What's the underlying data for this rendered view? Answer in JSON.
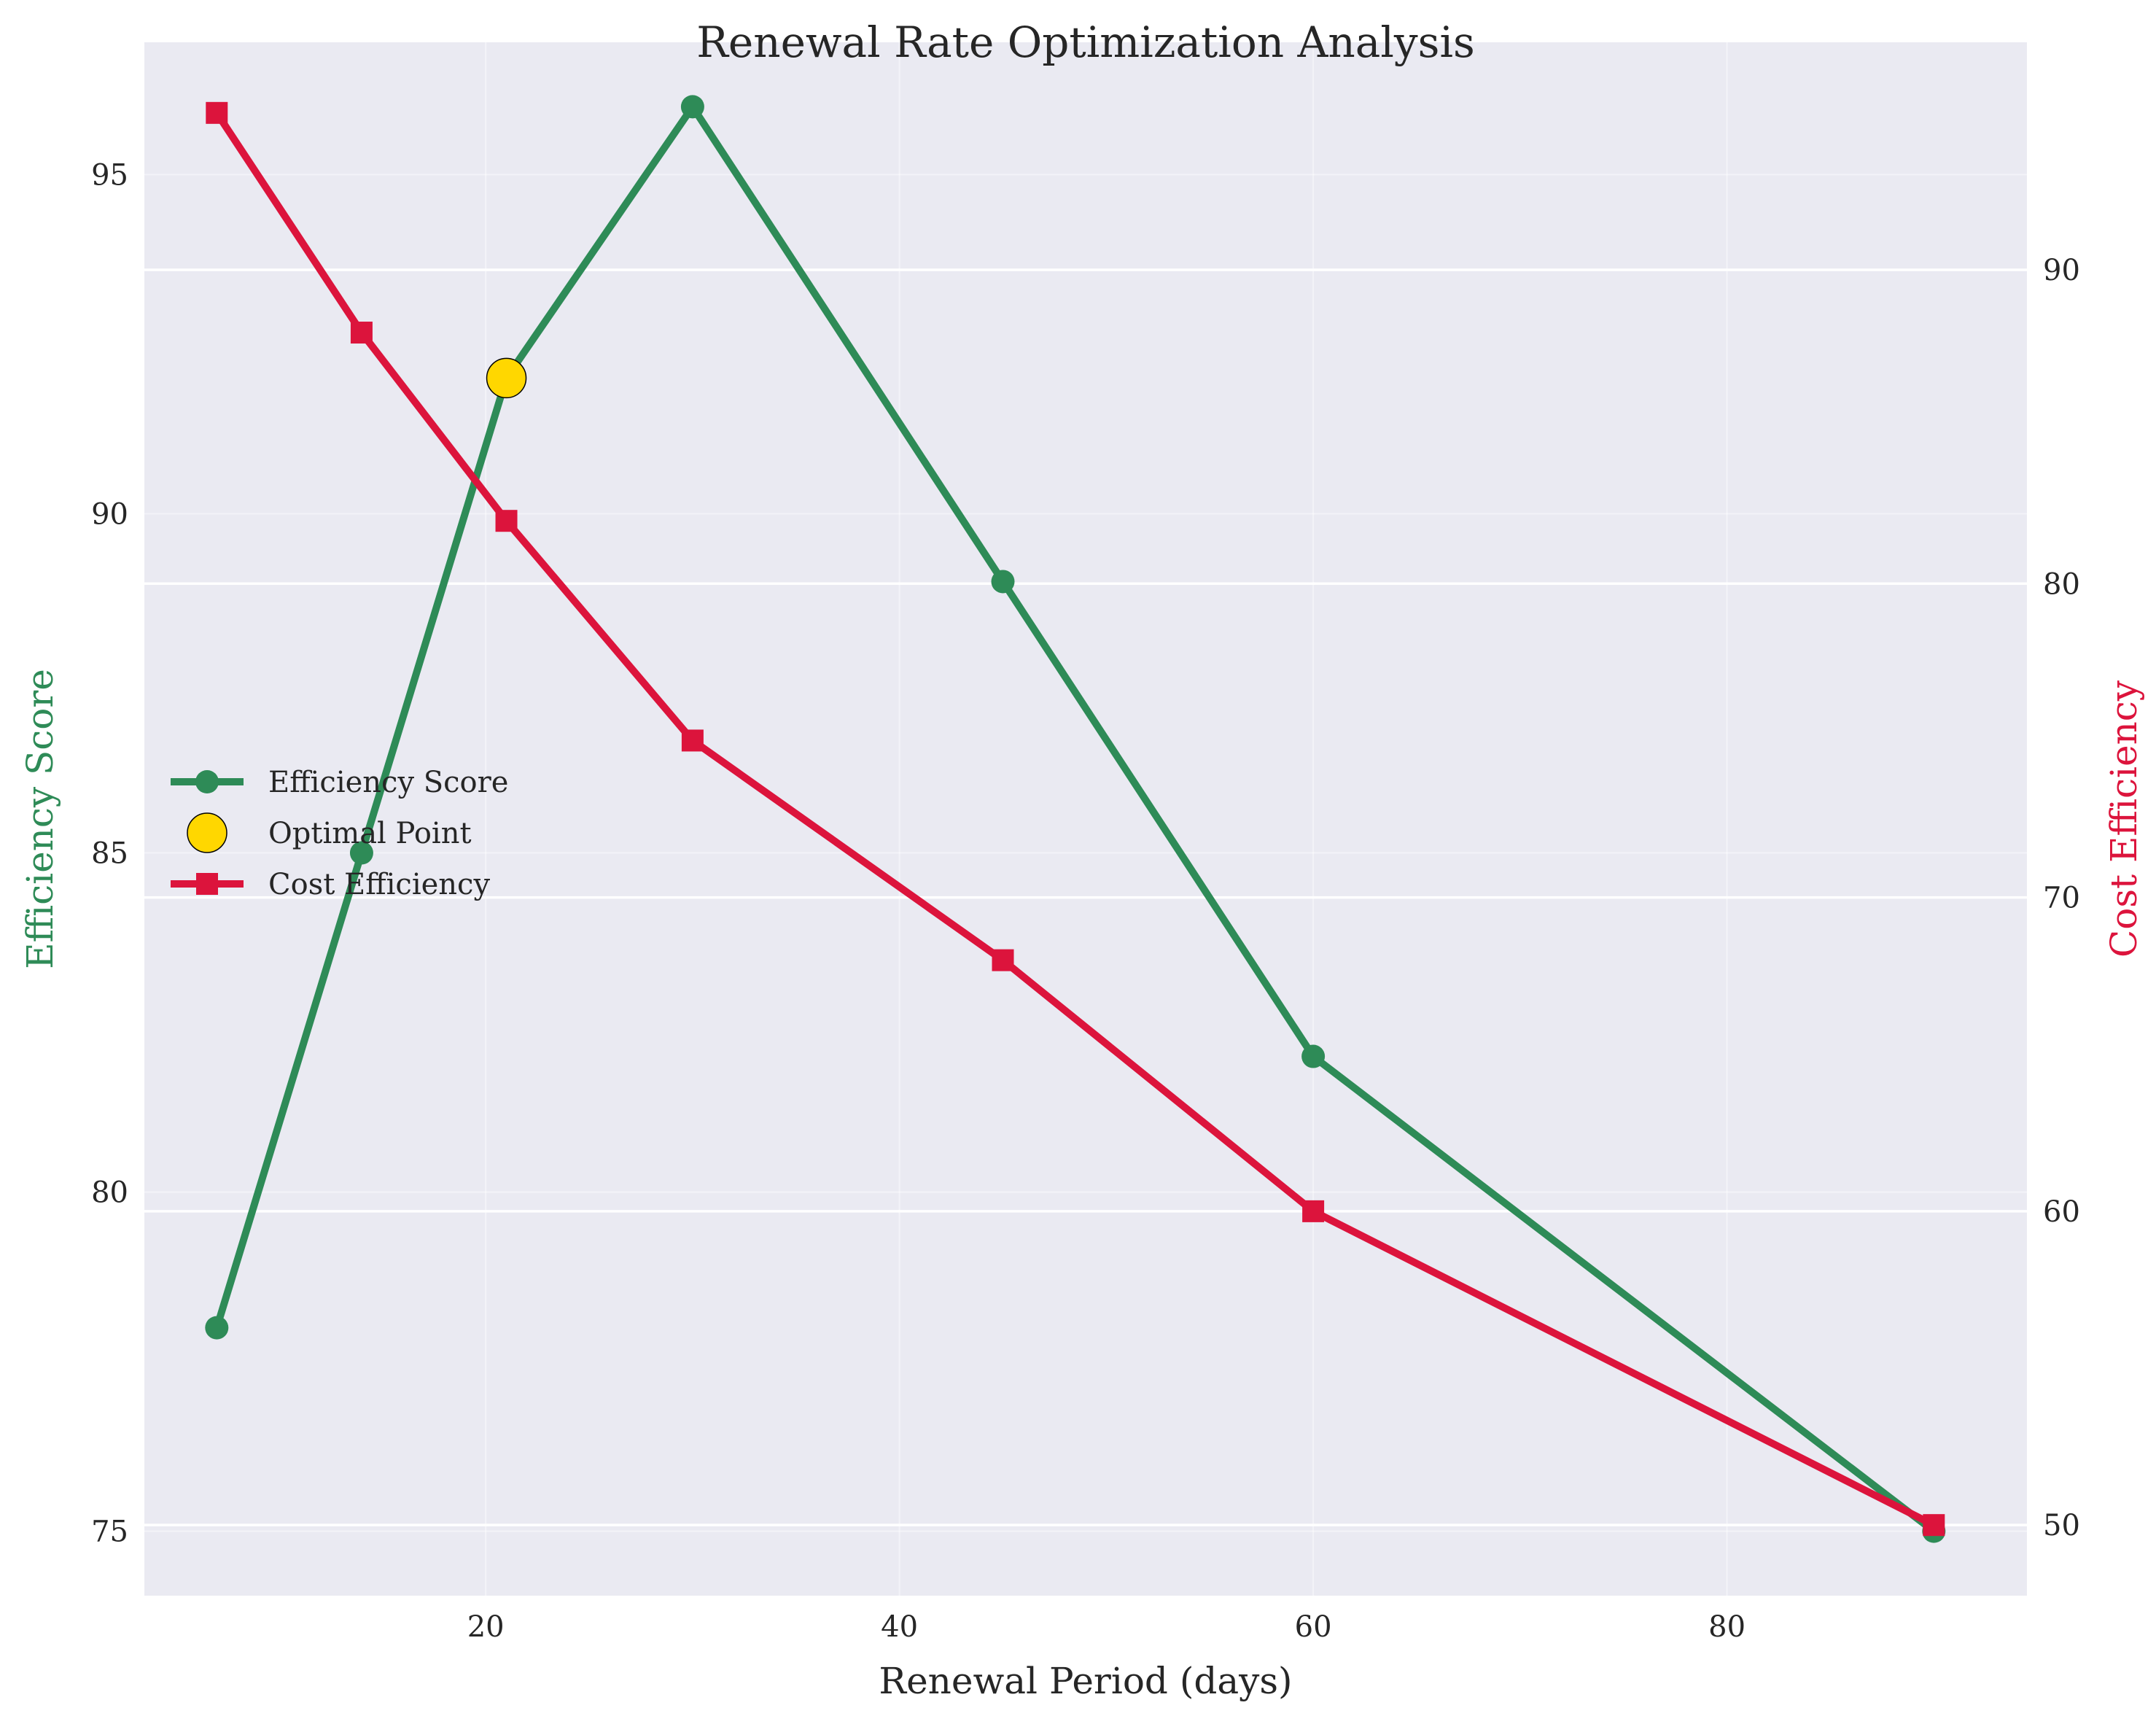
{
  "chart_data": {
    "type": "line",
    "title": "Renewal Rate Optimization Analysis",
    "xlabel": "Renewal Period (days)",
    "ylabel_left": "Efficiency Score",
    "ylabel_right": "Cost Efficiency",
    "x": [
      7,
      14,
      21,
      30,
      45,
      60,
      90
    ],
    "xlim": [
      3.5,
      94.5
    ],
    "ylim_left": [
      74.05,
      96.95
    ],
    "ylim_right": [
      47.75,
      97.25
    ],
    "xticks": [
      20,
      40,
      60,
      80
    ],
    "yticks_left": [
      75,
      80,
      85,
      90,
      95
    ],
    "yticks_right": [
      50,
      60,
      70,
      80,
      90
    ],
    "grid": true,
    "legend_position": "center-left",
    "series": [
      {
        "name": "Efficiency Score",
        "axis": "left",
        "marker": "circle",
        "color": "#2e8b57",
        "values": [
          78,
          85,
          92,
          96,
          89,
          82,
          75
        ]
      },
      {
        "name": "Cost Efficiency",
        "axis": "right",
        "marker": "square",
        "color": "#dc143c",
        "values": [
          95,
          88,
          82,
          75,
          68,
          60,
          50
        ]
      }
    ],
    "optimal_point": {
      "name": "Optimal Point",
      "x": 21,
      "y": 92,
      "color": "#ffd700"
    }
  },
  "colors": {
    "plot_background": "#eaeaf2",
    "grid": "#ffffff",
    "left_axis_label": "#2e8b57",
    "right_axis_label": "#dc143c"
  }
}
